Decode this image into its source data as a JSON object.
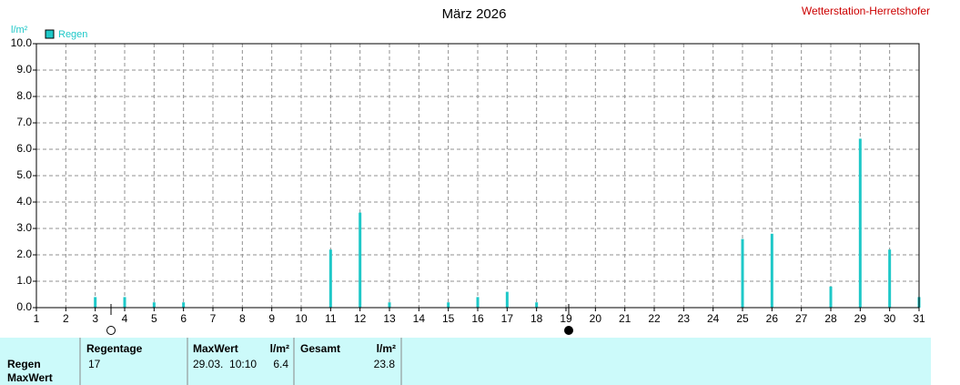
{
  "chart_data": {
    "type": "bar",
    "title": "März 2026",
    "credit": "Wetterstation-Herretshofer",
    "y_label": "l/m²",
    "x": [
      3,
      4,
      5,
      6,
      11,
      12,
      13,
      15,
      16,
      17,
      18,
      25,
      26,
      28,
      29,
      30,
      31
    ],
    "series": [
      {
        "name": "Regen",
        "color": "#1ec8c8",
        "values": [
          0.4,
          0.4,
          0.2,
          0.2,
          2.2,
          3.6,
          0.2,
          0.2,
          0.4,
          0.6,
          0.2,
          2.6,
          2.8,
          0.8,
          6.4,
          2.2,
          0.4
        ]
      }
    ],
    "xlim": [
      1,
      31
    ],
    "xticks": [
      1,
      2,
      3,
      4,
      5,
      6,
      7,
      8,
      9,
      10,
      11,
      12,
      13,
      14,
      15,
      16,
      17,
      18,
      19,
      20,
      21,
      22,
      23,
      24,
      25,
      26,
      27,
      28,
      29,
      30,
      31
    ],
    "ylim": [
      0,
      10
    ],
    "yticks": [
      {
        "value": 0,
        "label": "0.0"
      },
      {
        "value": 1,
        "label": "1.0"
      },
      {
        "value": 2,
        "label": "2.0"
      },
      {
        "value": 3,
        "label": "3.0"
      },
      {
        "value": 4,
        "label": "4.0"
      },
      {
        "value": 5,
        "label": "5.0"
      },
      {
        "value": 6,
        "label": "6.0"
      },
      {
        "value": 7,
        "label": "7.0"
      },
      {
        "value": 8,
        "label": "8.0"
      },
      {
        "value": 9,
        "label": "9.0"
      },
      {
        "value": 10,
        "label": "10.0"
      }
    ],
    "grid": true
  },
  "table": {
    "columns": [
      "Regentage",
      "MaxWert",
      "l/m²",
      "Gesamt",
      "l/m²"
    ],
    "rows": [
      {
        "label": "Regen",
        "cells": [
          "17",
          "29.03.  10:10",
          "6.4",
          "23.8"
        ]
      },
      {
        "label": "MaxWert"
      }
    ]
  }
}
